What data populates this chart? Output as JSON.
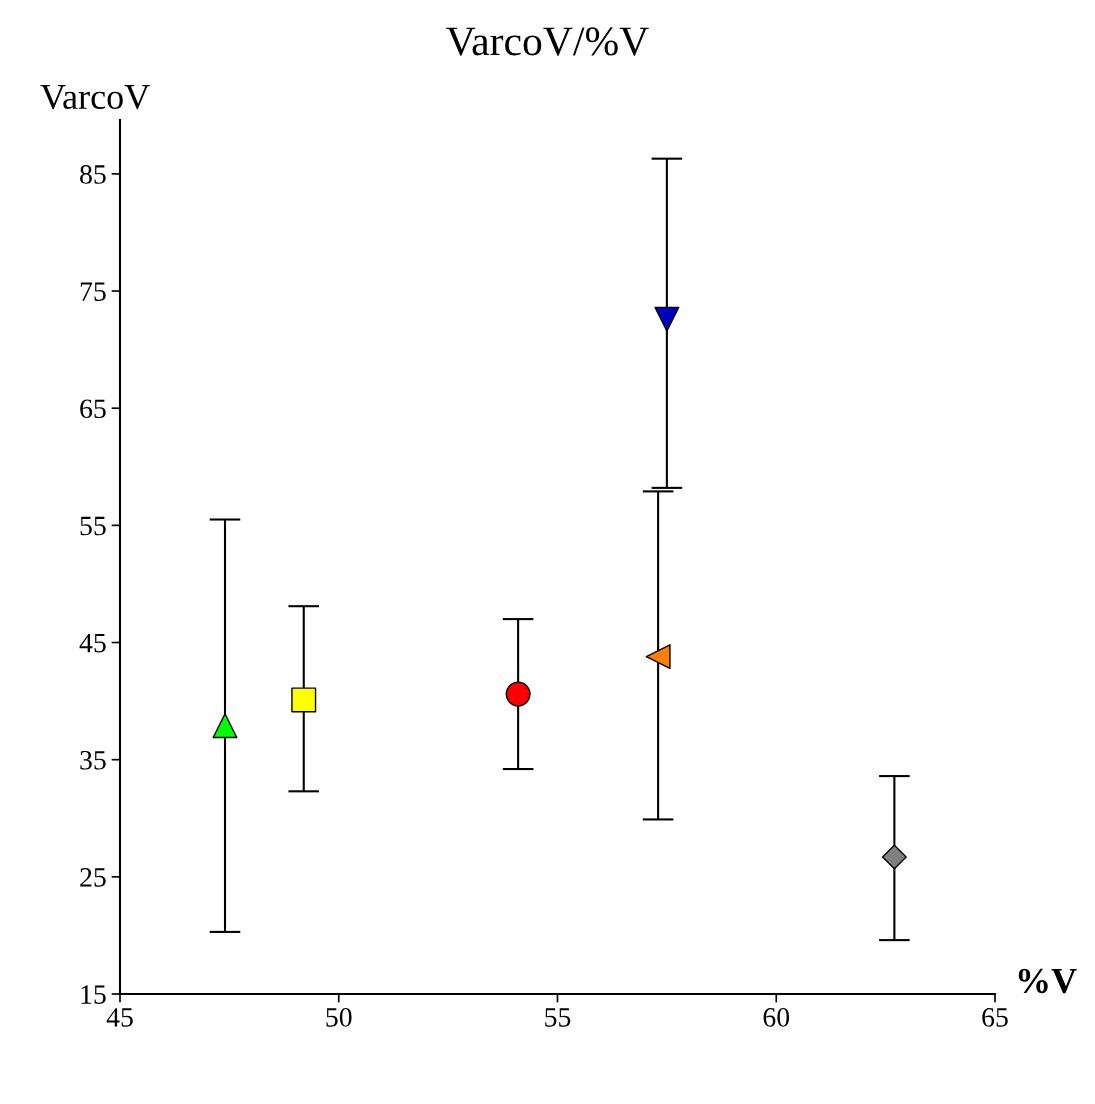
{
  "chart_data": {
    "type": "scatter",
    "title": "VarcoV/%V",
    "xlabel": "%V",
    "ylabel": "VarcoV",
    "xlim": [
      45,
      65
    ],
    "xticks": [
      45,
      50,
      55,
      60,
      65
    ],
    "ylim": [
      15,
      89.6
    ],
    "yticks": [
      15,
      25,
      35,
      45,
      55,
      65,
      75,
      85
    ],
    "grid": false,
    "legend": false,
    "series": [
      {
        "x": [
          47.4
        ],
        "values": [
          37.9
        ],
        "errors": [
          [
            20.3,
            55.5
          ]
        ],
        "color": "#00ff00",
        "marker": "triangle"
      },
      {
        "x": [
          49.2
        ],
        "values": [
          40.1
        ],
        "errors": [
          [
            32.3,
            48.1
          ]
        ],
        "color": "#ffff00",
        "marker": "square"
      },
      {
        "x": [
          54.1
        ],
        "values": [
          40.6
        ],
        "errors": [
          [
            34.2,
            47.0
          ]
        ],
        "color": "#ff0000",
        "marker": "circle"
      },
      {
        "x": [
          57.3
        ],
        "values": [
          43.8
        ],
        "errors": [
          [
            29.9,
            57.9
          ]
        ],
        "color": "#ff8000",
        "marker": "triangle_left"
      },
      {
        "x": [
          57.5
        ],
        "values": [
          72.6
        ],
        "errors": [
          [
            58.2,
            86.3
          ]
        ],
        "color": "#0000c0",
        "marker": "triangle_down"
      },
      {
        "x": [
          62.7
        ],
        "values": [
          26.7
        ],
        "errors": [
          [
            19.6,
            33.6
          ]
        ],
        "color": "#808080",
        "marker": "diamond"
      }
    ]
  }
}
